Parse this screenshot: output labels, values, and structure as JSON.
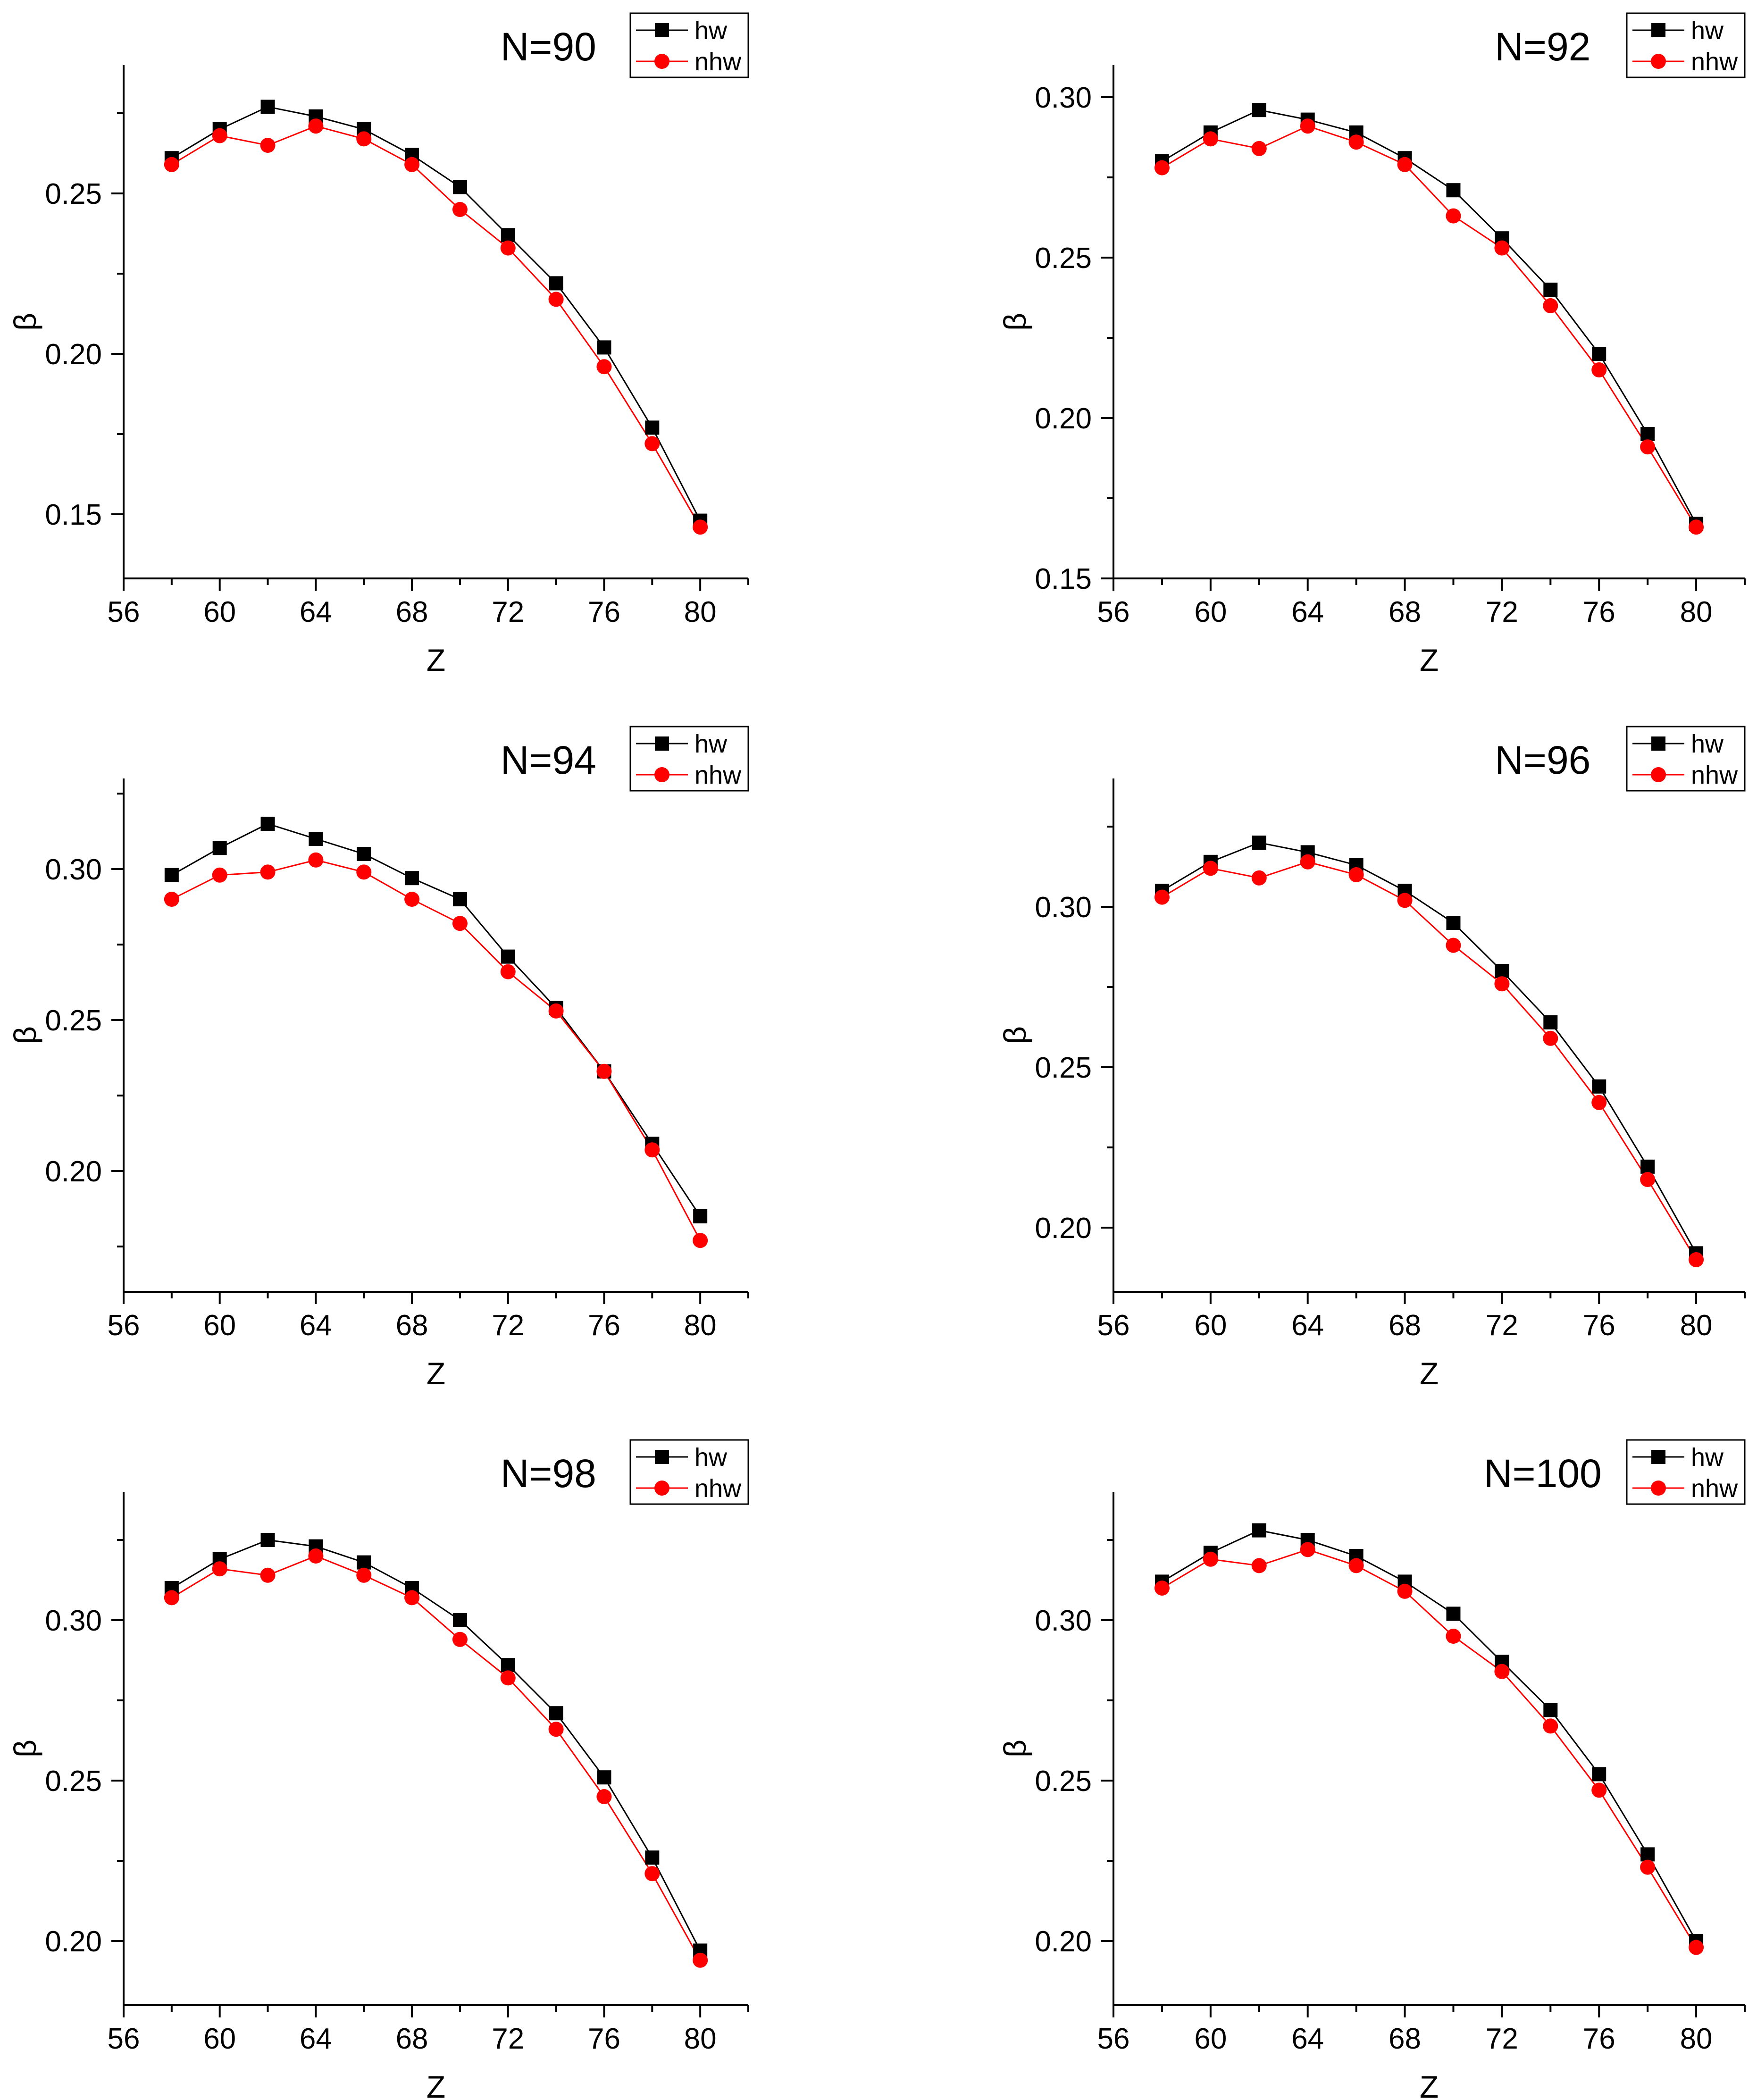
{
  "chart_data": [
    {
      "type": "line",
      "title": "N=90",
      "xlabel": "Z",
      "ylabel": "β",
      "xlim": [
        56,
        82
      ],
      "ylim": [
        0.13,
        0.29
      ],
      "xticks": [
        "56",
        "60",
        "64",
        "68",
        "72",
        "76",
        "80"
      ],
      "yticks": [
        "0.15",
        "0.20",
        "0.25"
      ],
      "x": [
        58,
        60,
        62,
        64,
        66,
        68,
        70,
        72,
        74,
        76,
        78,
        80
      ],
      "series": [
        {
          "name": "hw",
          "color": "#000000",
          "marker": "square",
          "values": [
            0.261,
            0.27,
            0.277,
            0.274,
            0.27,
            0.262,
            0.252,
            0.237,
            0.222,
            0.202,
            0.177,
            0.148
          ]
        },
        {
          "name": "nhw",
          "color": "#ff0000",
          "marker": "circle",
          "values": [
            0.259,
            0.268,
            0.265,
            0.271,
            0.267,
            0.259,
            0.245,
            0.233,
            0.217,
            0.196,
            0.172,
            0.146
          ]
        }
      ],
      "legend": "top-right"
    },
    {
      "type": "line",
      "title": "N=92",
      "xlabel": "Z",
      "ylabel": "β",
      "xlim": [
        56,
        82
      ],
      "ylim": [
        0.15,
        0.31
      ],
      "xticks": [
        "56",
        "60",
        "64",
        "68",
        "72",
        "76",
        "80"
      ],
      "yticks": [
        "0.15",
        "0.20",
        "0.25",
        "0.30"
      ],
      "x": [
        58,
        60,
        62,
        64,
        66,
        68,
        70,
        72,
        74,
        76,
        78,
        80
      ],
      "series": [
        {
          "name": "hw",
          "color": "#000000",
          "marker": "square",
          "values": [
            0.28,
            0.289,
            0.296,
            0.293,
            0.289,
            0.281,
            0.271,
            0.256,
            0.24,
            0.22,
            0.195,
            0.167
          ]
        },
        {
          "name": "nhw",
          "color": "#ff0000",
          "marker": "circle",
          "values": [
            0.278,
            0.287,
            0.284,
            0.291,
            0.286,
            0.279,
            0.263,
            0.253,
            0.235,
            0.215,
            0.191,
            0.166
          ]
        }
      ],
      "legend": "top-right"
    },
    {
      "type": "line",
      "title": "N=94",
      "xlabel": "Z",
      "ylabel": "β",
      "xlim": [
        56,
        82
      ],
      "ylim": [
        0.16,
        0.33
      ],
      "xticks": [
        "56",
        "60",
        "64",
        "68",
        "72",
        "76",
        "80"
      ],
      "yticks": [
        "0.20",
        "0.25",
        "0.30"
      ],
      "x": [
        58,
        60,
        62,
        64,
        66,
        68,
        70,
        72,
        74,
        76,
        78,
        80
      ],
      "series": [
        {
          "name": "hw",
          "color": "#000000",
          "marker": "square",
          "values": [
            0.298,
            0.307,
            0.315,
            0.31,
            0.305,
            0.297,
            0.29,
            0.271,
            0.254,
            0.233,
            0.209,
            0.185
          ]
        },
        {
          "name": "nhw",
          "color": "#ff0000",
          "marker": "circle",
          "values": [
            0.29,
            0.298,
            0.299,
            0.303,
            0.299,
            0.29,
            0.282,
            0.266,
            0.253,
            0.233,
            0.207,
            0.177
          ]
        }
      ],
      "legend": "top-right"
    },
    {
      "type": "line",
      "title": "N=96",
      "xlabel": "Z",
      "ylabel": "β",
      "xlim": [
        56,
        82
      ],
      "ylim": [
        0.18,
        0.34
      ],
      "xticks": [
        "56",
        "60",
        "64",
        "68",
        "72",
        "76",
        "80"
      ],
      "yticks": [
        "0.20",
        "0.25",
        "0.30"
      ],
      "x": [
        58,
        60,
        62,
        64,
        66,
        68,
        70,
        72,
        74,
        76,
        78,
        80
      ],
      "series": [
        {
          "name": "hw",
          "color": "#000000",
          "marker": "square",
          "values": [
            0.305,
            0.314,
            0.32,
            0.317,
            0.313,
            0.305,
            0.295,
            0.28,
            0.264,
            0.244,
            0.219,
            0.192
          ]
        },
        {
          "name": "nhw",
          "color": "#ff0000",
          "marker": "circle",
          "values": [
            0.303,
            0.312,
            0.309,
            0.314,
            0.31,
            0.302,
            0.288,
            0.276,
            0.259,
            0.239,
            0.215,
            0.19
          ]
        }
      ],
      "legend": "top-right"
    },
    {
      "type": "line",
      "title": "N=98",
      "xlabel": "Z",
      "ylabel": "β",
      "xlim": [
        56,
        82
      ],
      "ylim": [
        0.18,
        0.34
      ],
      "xticks": [
        "56",
        "60",
        "64",
        "68",
        "72",
        "76",
        "80"
      ],
      "yticks": [
        "0.20",
        "0.25",
        "0.30"
      ],
      "x": [
        58,
        60,
        62,
        64,
        66,
        68,
        70,
        72,
        74,
        76,
        78,
        80
      ],
      "series": [
        {
          "name": "hw",
          "color": "#000000",
          "marker": "square",
          "values": [
            0.31,
            0.319,
            0.325,
            0.323,
            0.318,
            0.31,
            0.3,
            0.286,
            0.271,
            0.251,
            0.226,
            0.197
          ]
        },
        {
          "name": "nhw",
          "color": "#ff0000",
          "marker": "circle",
          "values": [
            0.307,
            0.316,
            0.314,
            0.32,
            0.314,
            0.307,
            0.294,
            0.282,
            0.266,
            0.245,
            0.221,
            0.194
          ]
        }
      ],
      "legend": "top-right"
    },
    {
      "type": "line",
      "title": "N=100",
      "xlabel": "Z",
      "ylabel": "β",
      "xlim": [
        56,
        82
      ],
      "ylim": [
        0.18,
        0.34
      ],
      "xticks": [
        "56",
        "60",
        "64",
        "68",
        "72",
        "76",
        "80"
      ],
      "yticks": [
        "0.20",
        "0.25",
        "0.30"
      ],
      "x": [
        58,
        60,
        62,
        64,
        66,
        68,
        70,
        72,
        74,
        76,
        78,
        80
      ],
      "series": [
        {
          "name": "hw",
          "color": "#000000",
          "marker": "square",
          "values": [
            0.312,
            0.321,
            0.328,
            0.325,
            0.32,
            0.312,
            0.302,
            0.287,
            0.272,
            0.252,
            0.227,
            0.2
          ]
        },
        {
          "name": "nhw",
          "color": "#ff0000",
          "marker": "circle",
          "values": [
            0.31,
            0.319,
            0.317,
            0.322,
            0.317,
            0.309,
            0.295,
            0.284,
            0.267,
            0.247,
            0.223,
            0.198
          ]
        }
      ],
      "legend": "top-right"
    }
  ]
}
